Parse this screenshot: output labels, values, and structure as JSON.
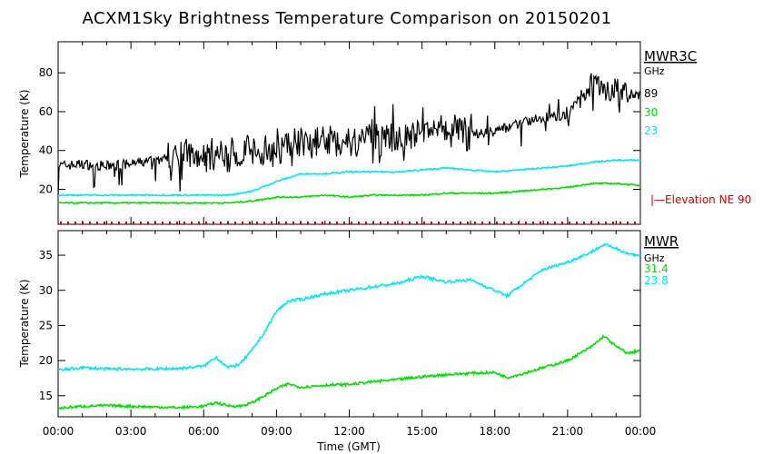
{
  "chart_data": [
    {
      "type": "line",
      "title": "ACXM1Sky Brightness Temperature Comparison on 20150201",
      "xlabel": "",
      "ylabel": "Temperature (K)",
      "ylim": [
        2,
        96
      ],
      "yticks": [
        20,
        40,
        60,
        80
      ],
      "xlim": [
        "00:00",
        "24:00"
      ],
      "grid": false,
      "legend": {
        "title": "MWR3C",
        "unit": "GHz",
        "placement": "right",
        "entries": [
          "89",
          "30",
          "23"
        ]
      },
      "annotation": "|—Elevation NE 90",
      "annotation_color": "#cc0000",
      "series": [
        {
          "name": "89",
          "color": "#000000",
          "x": [
            0,
            1,
            2,
            3,
            4,
            5,
            6,
            7,
            8,
            9,
            10,
            11,
            12,
            13,
            14,
            15,
            16,
            17,
            18,
            19,
            20,
            21,
            22,
            23,
            24
          ],
          "values": [
            32,
            33,
            32,
            33,
            35,
            37,
            38,
            38,
            39,
            41,
            45,
            44,
            45,
            46,
            47,
            49,
            50,
            48,
            50,
            54,
            57,
            58,
            76,
            70,
            68
          ]
        },
        {
          "name": "30",
          "color": "#00dd00",
          "x": [
            0,
            1,
            2,
            3,
            4,
            5,
            6,
            7,
            8,
            9,
            10,
            11,
            12,
            13,
            14,
            15,
            16,
            17,
            18,
            19,
            20,
            21,
            22,
            23,
            24
          ],
          "values": [
            13,
            13,
            13,
            13,
            13,
            13,
            13,
            13,
            14,
            16,
            16,
            17,
            16,
            17,
            17,
            17,
            18,
            18,
            18,
            19,
            20,
            21,
            23,
            23,
            22
          ]
        },
        {
          "name": "23",
          "color": "#00e5ee",
          "x": [
            0,
            1,
            2,
            3,
            4,
            5,
            6,
            7,
            8,
            9,
            10,
            11,
            12,
            13,
            14,
            15,
            16,
            17,
            18,
            19,
            20,
            21,
            22,
            23,
            24
          ],
          "values": [
            17,
            17,
            17,
            17,
            17,
            17,
            17,
            17,
            19,
            24,
            28,
            28,
            29,
            29,
            29,
            30,
            31,
            30,
            29,
            30,
            31,
            32,
            34,
            35,
            35
          ]
        }
      ]
    },
    {
      "type": "line",
      "title": "",
      "xlabel": "Time (GMT)",
      "ylabel": "Temperature (K)",
      "ylim": [
        12,
        38.5
      ],
      "yticks": [
        15,
        20,
        25,
        30,
        35
      ],
      "xlim": [
        "00:00",
        "24:00"
      ],
      "xticks": [
        "00:00",
        "03:00",
        "06:00",
        "09:00",
        "12:00",
        "15:00",
        "18:00",
        "21:00",
        "00:00"
      ],
      "grid": false,
      "legend": {
        "title": "MWR",
        "unit": "GHz",
        "placement": "right",
        "entries": [
          "31.4",
          "23.8"
        ]
      },
      "series": [
        {
          "name": "31.4",
          "color": "#00dd00",
          "x": [
            0,
            1,
            2,
            3,
            4,
            5,
            6,
            6.5,
            7,
            7.5,
            8,
            8.5,
            9,
            9.5,
            10,
            11,
            12,
            13,
            14,
            15,
            16,
            17,
            18,
            18.5,
            19,
            20,
            21,
            22,
            22.5,
            23,
            23.5,
            24
          ],
          "values": [
            13.2,
            13.5,
            13.6,
            13.5,
            13.4,
            13.3,
            13.5,
            14.0,
            13.6,
            13.5,
            14.0,
            15.0,
            16.0,
            16.7,
            16.2,
            16.5,
            16.6,
            17.0,
            17.3,
            17.7,
            18.0,
            18.2,
            18.3,
            17.6,
            18.0,
            19.0,
            20.0,
            22.0,
            23.5,
            22.0,
            21.0,
            21.5
          ]
        },
        {
          "name": "23.8",
          "color": "#00e5ee",
          "x": [
            0,
            1,
            2,
            3,
            4,
            5,
            6,
            6.5,
            7,
            7.5,
            8,
            8.5,
            9,
            9.5,
            10,
            11,
            12,
            13,
            14,
            15,
            16,
            17,
            18,
            18.5,
            19,
            20,
            21,
            22,
            22.5,
            23,
            23.5,
            24
          ],
          "values": [
            18.6,
            19.0,
            18.8,
            18.8,
            18.8,
            18.9,
            19.2,
            20.5,
            19.0,
            19.5,
            21.5,
            24.0,
            27.0,
            28.5,
            28.7,
            29.5,
            30.0,
            30.5,
            31.0,
            32.0,
            31.2,
            31.5,
            30.0,
            29.2,
            30.5,
            33.0,
            34.0,
            35.5,
            36.5,
            36.0,
            35.2,
            35.0
          ]
        }
      ]
    }
  ]
}
